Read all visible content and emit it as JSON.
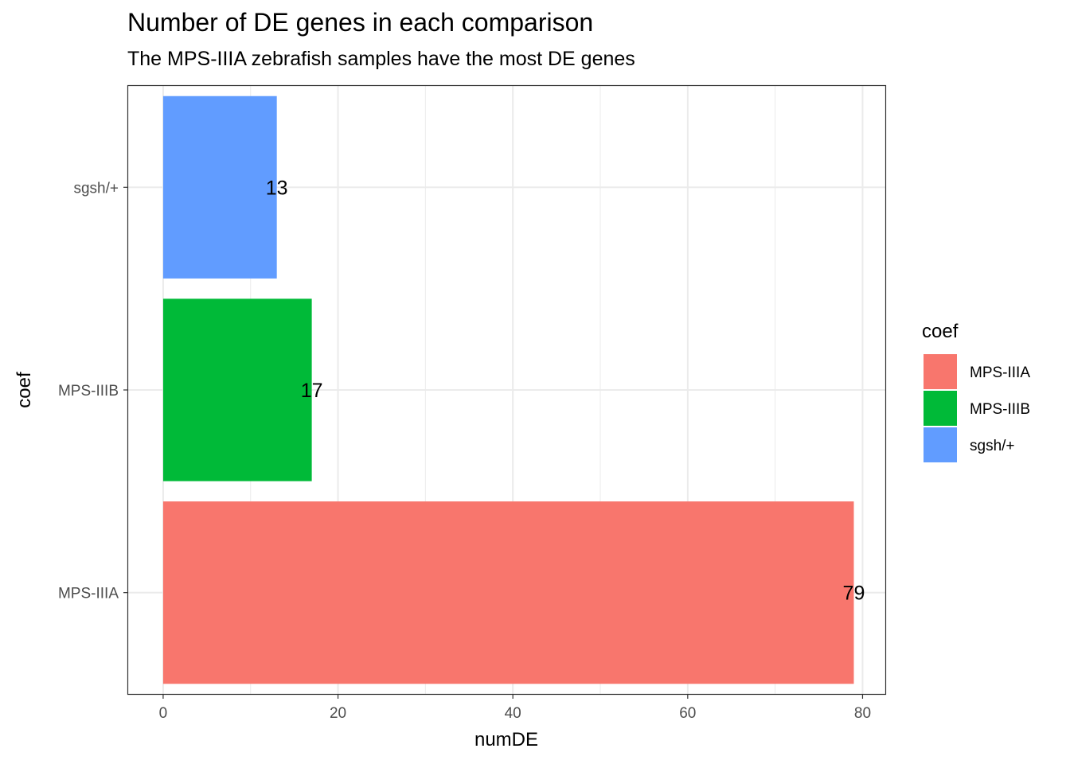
{
  "chart_data": {
    "type": "bar",
    "orientation": "horizontal",
    "title": "Number of DE genes in each comparison",
    "subtitle": "The MPS-IIIA zebrafish samples have the most DE genes",
    "xlabel": "numDE",
    "ylabel": "coef",
    "categories": [
      "MPS-IIIA",
      "MPS-IIIB",
      "sgsh/+"
    ],
    "values": [
      79,
      17,
      13
    ],
    "colors": [
      "#F8766D",
      "#00BA38",
      "#619CFF"
    ],
    "xlim": [
      -4,
      82.6
    ],
    "xticks": [
      0,
      20,
      40,
      60,
      80
    ],
    "grid": true,
    "legend": {
      "title": "coef",
      "position": "right",
      "entries": [
        "MPS-IIIA",
        "MPS-IIIB",
        "sgsh/+"
      ]
    }
  }
}
